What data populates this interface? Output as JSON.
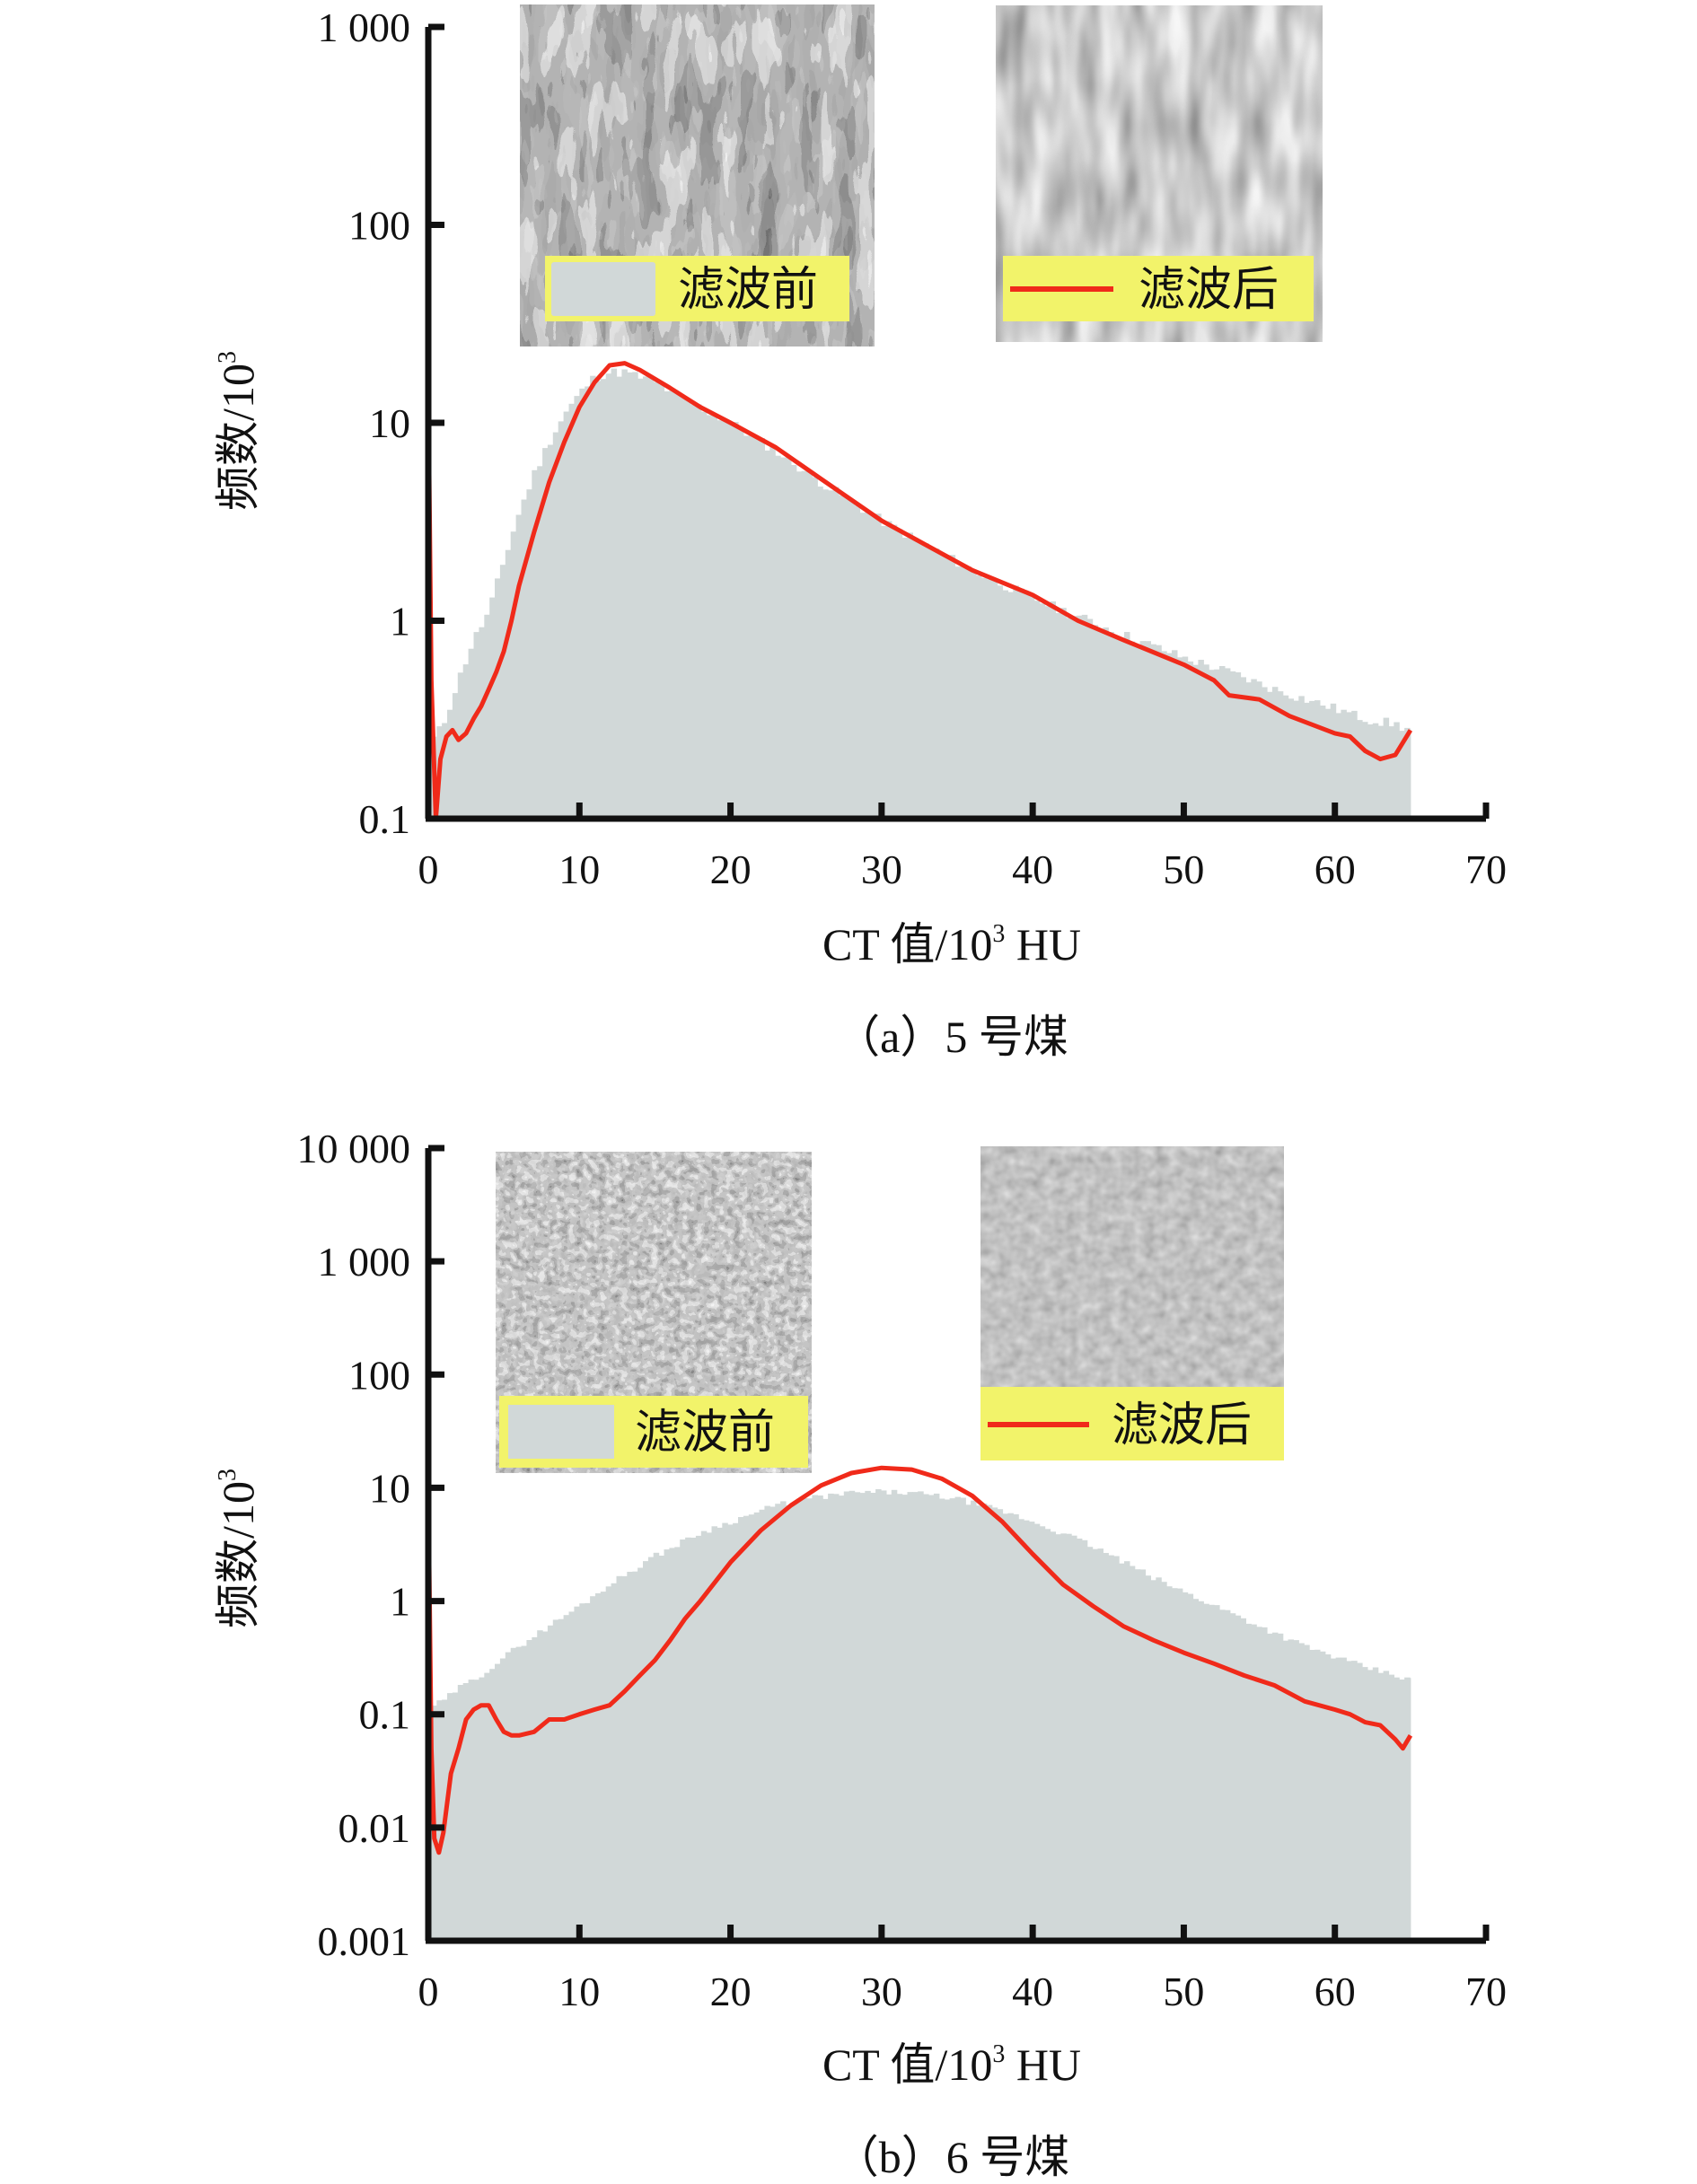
{
  "colors": {
    "before_fill": "#d1d8d8",
    "after_line": "#f02a1a",
    "legend_bg": "#f2f36a",
    "axis": "#111111"
  },
  "chart_data": [
    {
      "id": "a",
      "type": "area",
      "caption": "（a）5 号煤",
      "xlabel_main": "CT 值/10",
      "xlabel_sup": "3",
      "xlabel_unit": " HU",
      "ylabel_main": "频数/10",
      "ylabel_sup": "3",
      "yscale": "log",
      "xlim": [
        0,
        70
      ],
      "ylim": [
        0.1,
        1000
      ],
      "x_ticks": [
        0,
        10,
        20,
        30,
        40,
        50,
        60,
        70
      ],
      "x_tick_labels": [
        "0",
        "10",
        "20",
        "30",
        "40",
        "50",
        "60",
        "70"
      ],
      "y_ticks": [
        0.1,
        1,
        10,
        100,
        1000
      ],
      "y_tick_labels": [
        "0.1",
        "1",
        "10",
        "100",
        "1 000"
      ],
      "legend": [
        {
          "label": "滤波前",
          "kind": "patch"
        },
        {
          "label": "滤波后",
          "kind": "line"
        }
      ],
      "series": [
        {
          "name": "滤波前",
          "style": "histogram",
          "x": [
            0.3,
            1,
            2,
            3,
            4,
            5,
            6,
            7,
            8,
            9,
            10,
            11,
            12,
            13,
            14,
            15,
            17,
            20,
            23,
            26,
            30,
            33,
            36,
            40,
            43,
            46,
            50,
            53,
            56,
            60,
            62,
            64,
            65
          ],
          "y": [
            0.25,
            0.3,
            0.5,
            0.8,
            1.1,
            2,
            3.5,
            5.5,
            8,
            11,
            14,
            17,
            18,
            18,
            17,
            16,
            13,
            10,
            7.2,
            5,
            3.2,
            2.4,
            1.8,
            1.3,
            1.05,
            0.85,
            0.65,
            0.55,
            0.45,
            0.36,
            0.32,
            0.3,
            0.28
          ]
        },
        {
          "name": "滤波后",
          "style": "line",
          "x": [
            0,
            0.2,
            0.5,
            0.8,
            1.2,
            1.6,
            2,
            2.5,
            3,
            3.5,
            4,
            4.5,
            5,
            5.5,
            6,
            7,
            8,
            9,
            10,
            11,
            12,
            13,
            14,
            16,
            18,
            20,
            23,
            26,
            30,
            33,
            36,
            40,
            43,
            46,
            50,
            52,
            53,
            55,
            57,
            60,
            61,
            62,
            63,
            64,
            65
          ],
          "y": [
            15,
            0.5,
            0.1,
            0.2,
            0.26,
            0.28,
            0.25,
            0.27,
            0.32,
            0.37,
            0.45,
            0.55,
            0.7,
            1.0,
            1.5,
            2.8,
            5,
            8,
            12,
            16,
            19.5,
            20,
            18.5,
            15,
            12,
            10,
            7.5,
            5.2,
            3.2,
            2.4,
            1.8,
            1.35,
            1.0,
            0.8,
            0.6,
            0.5,
            0.42,
            0.4,
            0.33,
            0.27,
            0.26,
            0.22,
            0.2,
            0.21,
            0.28
          ]
        }
      ]
    },
    {
      "id": "b",
      "type": "area",
      "caption": "（b）6 号煤",
      "xlabel_main": "CT 值/10",
      "xlabel_sup": "3",
      "xlabel_unit": " HU",
      "ylabel_main": "频数/10",
      "ylabel_sup": "3",
      "yscale": "log",
      "xlim": [
        0,
        70
      ],
      "ylim": [
        0.001,
        10000
      ],
      "x_ticks": [
        0,
        10,
        20,
        30,
        40,
        50,
        60,
        70
      ],
      "x_tick_labels": [
        "0",
        "10",
        "20",
        "30",
        "40",
        "50",
        "60",
        "70"
      ],
      "y_ticks": [
        0.001,
        0.01,
        0.1,
        1,
        10,
        100,
        1000,
        10000
      ],
      "y_tick_labels": [
        "0.001",
        "0.01",
        "0.1",
        "1",
        "10",
        "100",
        "1 000",
        "10 000"
      ],
      "legend": [
        {
          "label": "滤波前",
          "kind": "patch"
        },
        {
          "label": "滤波后",
          "kind": "line"
        }
      ],
      "series": [
        {
          "name": "滤波前",
          "style": "histogram",
          "x": [
            0.3,
            1,
            2,
            3,
            4,
            6,
            8,
            10,
            12,
            15,
            18,
            20,
            23,
            25,
            28,
            30,
            32,
            35,
            38,
            40,
            43,
            45,
            48,
            50,
            53,
            55,
            58,
            60,
            62,
            64,
            65
          ],
          "y": [
            0.12,
            0.13,
            0.17,
            0.2,
            0.25,
            0.4,
            0.6,
            0.9,
            1.4,
            2.5,
            4,
            5,
            7,
            8,
            9,
            9.2,
            9,
            8,
            6.2,
            5,
            3.5,
            2.6,
            1.6,
            1.2,
            0.8,
            0.6,
            0.4,
            0.32,
            0.26,
            0.22,
            0.2
          ]
        },
        {
          "name": "滤波后",
          "style": "line",
          "x": [
            0,
            0.2,
            0.4,
            0.7,
            1,
            1.5,
            2,
            2.5,
            3,
            3.5,
            4,
            4.5,
            5,
            5.5,
            6,
            7,
            8,
            9,
            10,
            11,
            12,
            13,
            14,
            15,
            16,
            17,
            18,
            20,
            22,
            24,
            26,
            28,
            30,
            32,
            34,
            36,
            38,
            40,
            42,
            44,
            46,
            48,
            50,
            52,
            54,
            56,
            58,
            60,
            61,
            62,
            63,
            64,
            64.5,
            65
          ],
          "y": [
            10,
            0.05,
            0.008,
            0.006,
            0.009,
            0.03,
            0.05,
            0.09,
            0.11,
            0.12,
            0.12,
            0.09,
            0.07,
            0.065,
            0.065,
            0.07,
            0.09,
            0.09,
            0.1,
            0.11,
            0.12,
            0.16,
            0.22,
            0.3,
            0.45,
            0.7,
            1.0,
            2.2,
            4.2,
            7,
            10.5,
            13.5,
            15,
            14.5,
            12,
            8.5,
            5,
            2.6,
            1.4,
            0.9,
            0.6,
            0.45,
            0.35,
            0.28,
            0.22,
            0.18,
            0.13,
            0.11,
            0.1,
            0.085,
            0.08,
            0.06,
            0.05,
            0.065
          ]
        }
      ]
    }
  ]
}
